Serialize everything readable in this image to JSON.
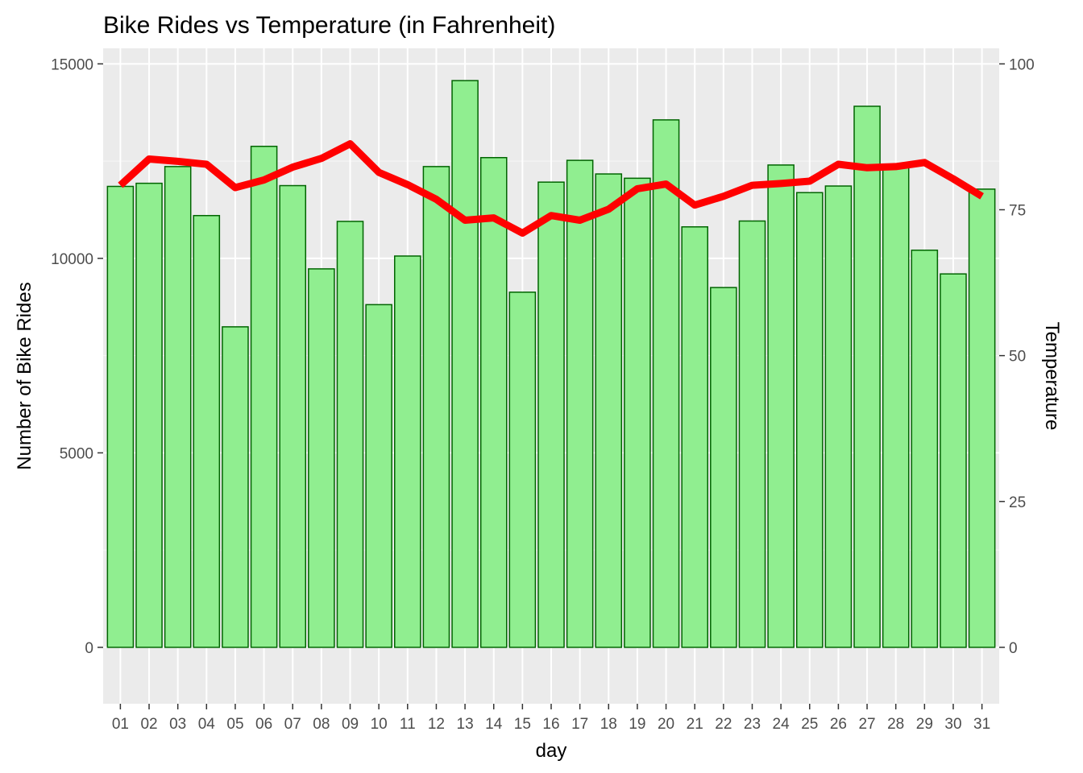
{
  "chart_data": {
    "type": "bar",
    "title": "Bike Rides vs Temperature (in Fahrenheit)",
    "xlabel": "day",
    "ylabel": "Number of Bike Rides",
    "y2label": "Temperature",
    "categories": [
      "01",
      "02",
      "03",
      "04",
      "05",
      "06",
      "07",
      "08",
      "09",
      "10",
      "11",
      "12",
      "13",
      "14",
      "15",
      "16",
      "17",
      "18",
      "19",
      "20",
      "21",
      "22",
      "23",
      "24",
      "25",
      "26",
      "27",
      "28",
      "29",
      "30",
      "31"
    ],
    "series": [
      {
        "kind": "bar",
        "axis": "left",
        "values": [
          11850,
          11930,
          12360,
          11100,
          8240,
          12880,
          11870,
          9730,
          10950,
          8810,
          10060,
          12360,
          14570,
          12590,
          9130,
          11960,
          12520,
          12170,
          12060,
          13560,
          10810,
          9250,
          10960,
          12400,
          11690,
          11860,
          13910,
          12420,
          10210,
          9600,
          11780
        ]
      },
      {
        "kind": "line",
        "axis": "right",
        "values": [
          79.2,
          83.7,
          83.3,
          82.8,
          78.8,
          80.1,
          82.3,
          83.8,
          86.3,
          81.4,
          79.3,
          76.8,
          73.2,
          73.6,
          71.0,
          74.0,
          73.2,
          75.1,
          78.6,
          79.4,
          75.8,
          77.3,
          79.2,
          79.5,
          79.9,
          82.8,
          82.2,
          82.4,
          83.1,
          80.3,
          77.3
        ]
      }
    ],
    "ylim": [
      -1450,
      15400
    ],
    "y2lim": [
      -9.67,
      102.67
    ],
    "yticks": [
      0,
      5000,
      10000,
      15000
    ],
    "y2ticks": [
      0,
      25,
      50,
      75,
      100
    ],
    "grid": true,
    "colors": {
      "bar_fill": "#90EE90",
      "bar_stroke": "#006400",
      "line": "#FF0000",
      "panel_bg": "#EBEBEB",
      "grid_major": "#FFFFFF",
      "tick_text": "#4D4D4D"
    }
  }
}
